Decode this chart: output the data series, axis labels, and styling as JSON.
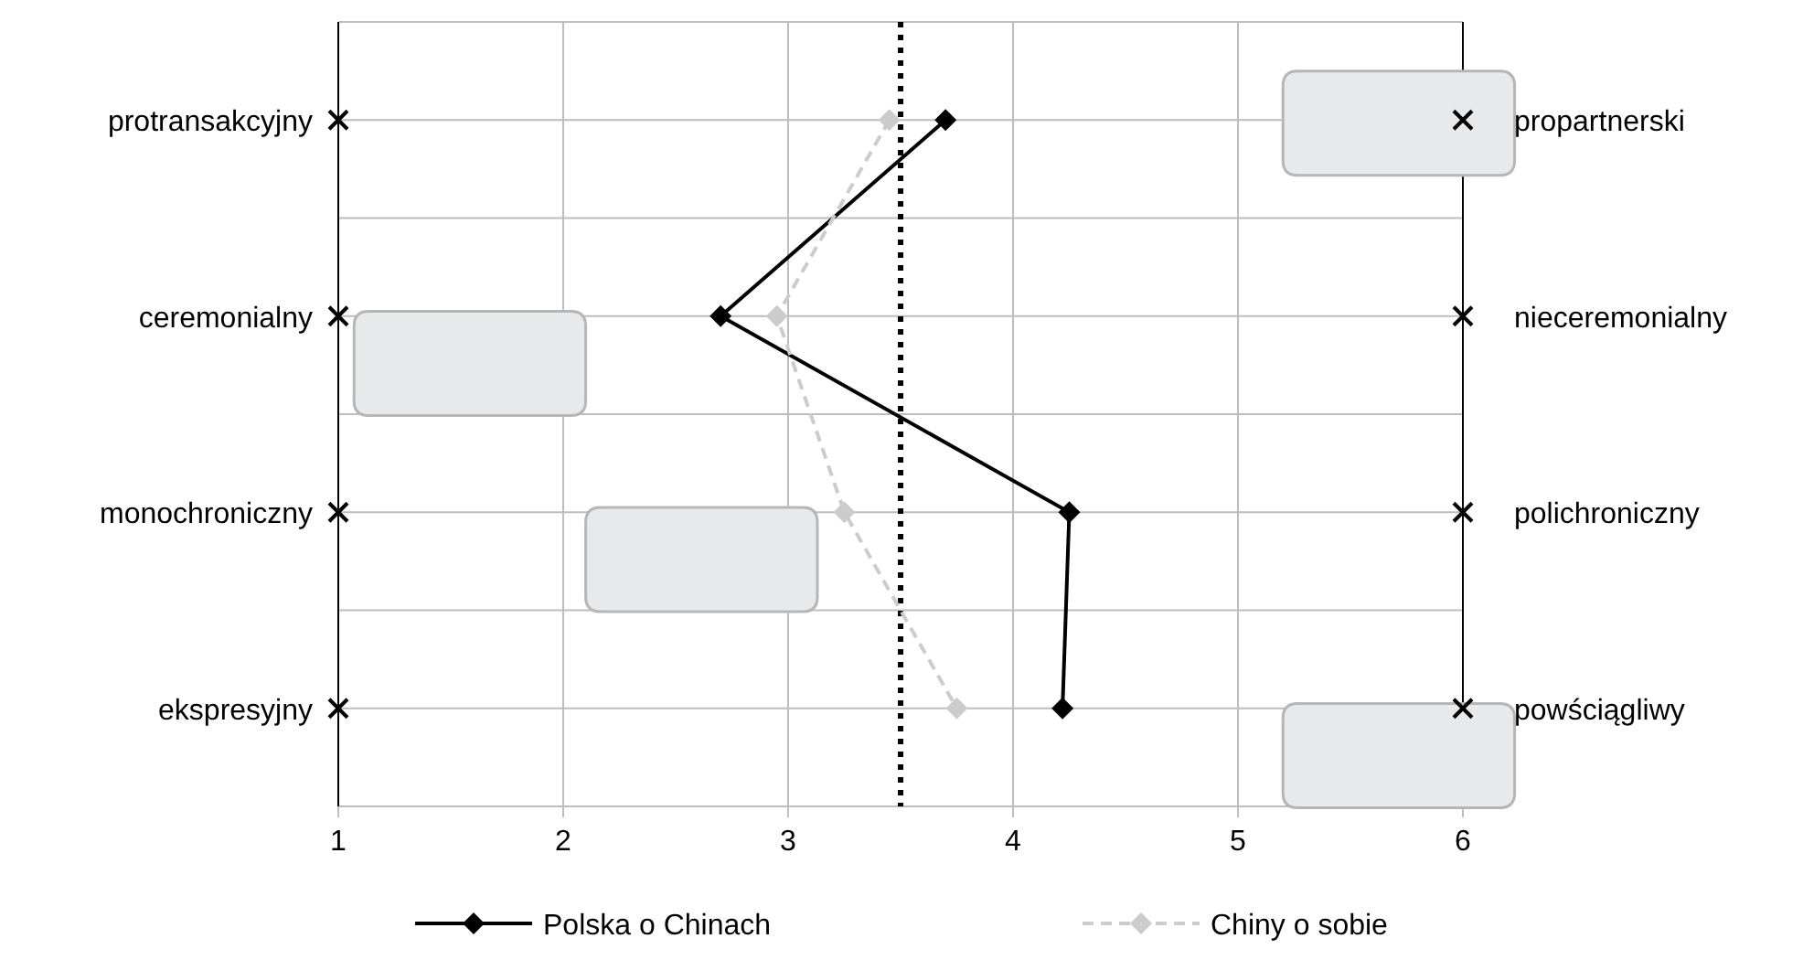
{
  "chart_data": {
    "type": "line",
    "orientation": "horizontal",
    "categories": [
      "protransakcyjny",
      "ceremonialny",
      "monochroniczny",
      "ekspresyjny"
    ],
    "y2_categories": [
      "propartnerski",
      "nieceremonialny",
      "polichroniczny",
      "powściągliwy"
    ],
    "xlim": [
      1,
      6
    ],
    "xticks": [
      1,
      2,
      3,
      4,
      5,
      6
    ],
    "grid": true,
    "legend": "bottom",
    "ref_lines": [
      {
        "axis": "x",
        "value": 3.5,
        "line_style": "dotted",
        "color": "#000000"
      }
    ],
    "series": [
      {
        "name": "Polska o Chinach",
        "color": "#000000",
        "values": [
          3.7,
          2.7,
          4.25,
          4.22
        ],
        "marker": "diamond",
        "line_style": "solid"
      },
      {
        "name": "Chiny o sobie",
        "color": "#cccccc",
        "values": [
          3.45,
          2.95,
          3.25,
          3.75
        ],
        "marker": "diamond",
        "line_style": "dashed"
      },
      {
        "type": "scatter",
        "color": "#000000",
        "values": [
          1,
          1,
          1,
          1
        ],
        "marker": "cross"
      },
      {
        "type": "scatter",
        "color": "#000000",
        "values": [
          6,
          6,
          6,
          6
        ],
        "marker": "cross"
      }
    ]
  }
}
